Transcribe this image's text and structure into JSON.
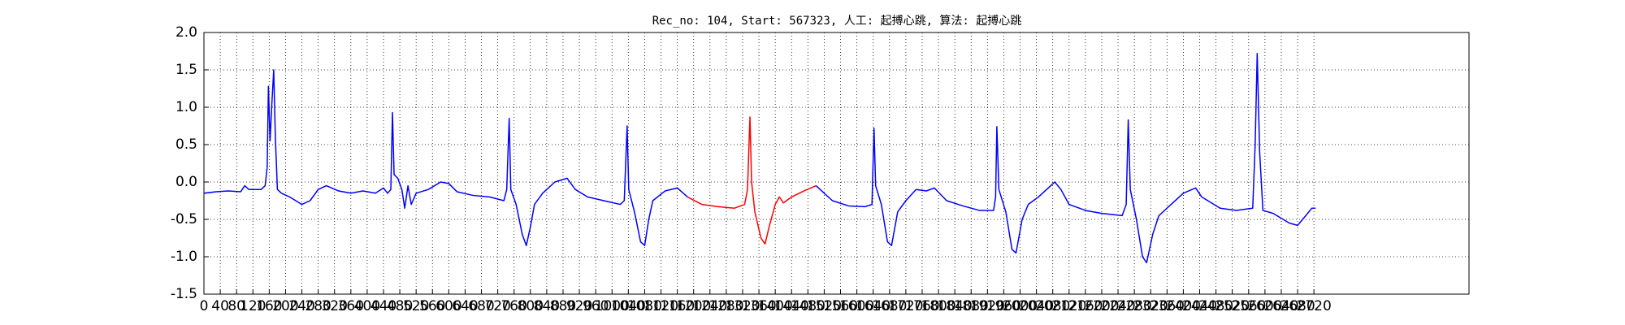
{
  "chart_data": {
    "type": "line",
    "title": "Rec_no: 104, Start: 567323, 人工: 起搏心跳, 算法: 起搏心跳",
    "xlim": [
      0,
      3100
    ],
    "ylim": [
      -1.5,
      2.0
    ],
    "yticks": [
      {
        "value": -1.5,
        "label": "-1.5"
      },
      {
        "value": -1.0,
        "label": "-1.0"
      },
      -0.5,
      {
        "value": 0.0,
        "label": "0.0"
      },
      0.5,
      {
        "value": 1.0,
        "label": "1.0"
      },
      1.5,
      {
        "value": 2.0,
        "label": "2.0"
      }
    ],
    "xticks": [
      0,
      40,
      80,
      120,
      160,
      200,
      240,
      280,
      320,
      360,
      400,
      440,
      480,
      520,
      560,
      600,
      640,
      680,
      720,
      760,
      800,
      840,
      880,
      920,
      960,
      1000,
      1040,
      1080,
      1120,
      1160,
      1200,
      1240,
      1280,
      1320,
      1360,
      1400,
      1440,
      1480,
      1520,
      1560,
      1600,
      1640,
      1680,
      1720,
      1760,
      1800,
      1840,
      1880,
      1920,
      1960,
      2000,
      2040,
      2080,
      2120,
      2160,
      2200,
      2240,
      2280,
      2320,
      2360,
      2400,
      2440,
      2480,
      2520,
      2560,
      2600,
      2640,
      2680,
      2720
    ],
    "grid": true,
    "series": [
      {
        "color": "#0000ff",
        "x": [
          0,
          30,
          60,
          90,
          100,
          110,
          140,
          150,
          155,
          158,
          162,
          166,
          171,
          175,
          180,
          190,
          210,
          240,
          260,
          280,
          300,
          330,
          360,
          390,
          420,
          440,
          450,
          458,
          462,
          466,
          475,
          485,
          492,
          500,
          508,
          520,
          550,
          580,
          600,
          620,
          660,
          700,
          735,
          742,
          748,
          752,
          765,
          780,
          790,
          800,
          810,
          830,
          860,
          890,
          910,
          940,
          980,
          1020,
          1030,
          1037,
          1041,
          1055,
          1070,
          1080,
          1090,
          1100,
          1130,
          1160,
          1185
        ],
        "values": [
          -0.15,
          -0.13,
          -0.12,
          -0.13,
          -0.05,
          -0.1,
          -0.1,
          -0.05,
          0.2,
          1.28,
          0.55,
          1.0,
          1.5,
          0.6,
          -0.1,
          -0.15,
          -0.2,
          -0.3,
          -0.25,
          -0.1,
          -0.05,
          -0.12,
          -0.15,
          -0.12,
          -0.15,
          -0.08,
          -0.15,
          -0.1,
          0.93,
          0.1,
          0.05,
          -0.1,
          -0.35,
          -0.05,
          -0.3,
          -0.15,
          -0.1,
          0.0,
          -0.02,
          -0.13,
          -0.18,
          -0.2,
          -0.25,
          -0.1,
          0.85,
          -0.1,
          -0.3,
          -0.7,
          -0.85,
          -0.6,
          -0.3,
          -0.15,
          0.0,
          0.05,
          -0.1,
          -0.2,
          -0.25,
          -0.3,
          -0.25,
          0.75,
          -0.1,
          -0.4,
          -0.8,
          -0.85,
          -0.5,
          -0.25,
          -0.12,
          -0.08,
          -0.2
        ]
      },
      {
        "color": "#ff0000",
        "x": [
          1185,
          1220,
          1260,
          1300,
          1325,
          1332,
          1338,
          1342,
          1350,
          1365,
          1375,
          1385,
          1400,
          1410,
          1420,
          1440,
          1470,
          1500
        ],
        "values": [
          -0.2,
          -0.3,
          -0.33,
          -0.35,
          -0.3,
          -0.1,
          0.87,
          0.0,
          -0.4,
          -0.75,
          -0.83,
          -0.6,
          -0.3,
          -0.2,
          -0.28,
          -0.2,
          -0.12,
          -0.05
        ]
      },
      {
        "color": "#0000ff",
        "x": [
          1500,
          1510,
          1540,
          1580,
          1620,
          1637,
          1642,
          1646,
          1660,
          1675,
          1685,
          1700,
          1720,
          1745,
          1770,
          1790,
          1820,
          1860,
          1900,
          1935,
          1940,
          1943,
          1948,
          1965,
          1980,
          1990,
          2005,
          2020,
          2045,
          2075,
          2085,
          2100,
          2120,
          2160,
          2200,
          2250,
          2260,
          2265,
          2270,
          2285,
          2300,
          2310,
          2325,
          2340,
          2370,
          2400,
          2430,
          2445,
          2460,
          2490,
          2530,
          2570,
          2576,
          2581,
          2587,
          2595,
          2620,
          2660,
          2680,
          2700,
          2715,
          2724
        ],
        "values": [
          -0.05,
          -0.1,
          -0.25,
          -0.32,
          -0.33,
          -0.3,
          0.72,
          -0.05,
          -0.3,
          -0.8,
          -0.85,
          -0.4,
          -0.25,
          -0.1,
          -0.12,
          -0.08,
          -0.25,
          -0.32,
          -0.38,
          -0.38,
          -0.2,
          0.74,
          -0.1,
          -0.4,
          -0.9,
          -0.95,
          -0.5,
          -0.3,
          -0.2,
          -0.05,
          0.0,
          -0.1,
          -0.3,
          -0.38,
          -0.42,
          -0.45,
          -0.3,
          0.83,
          -0.1,
          -0.5,
          -1.0,
          -1.08,
          -0.7,
          -0.45,
          -0.3,
          -0.15,
          -0.08,
          -0.2,
          -0.25,
          -0.35,
          -0.38,
          -0.35,
          0.5,
          1.72,
          0.4,
          -0.38,
          -0.42,
          -0.55,
          -0.58,
          -0.45,
          -0.35,
          -0.35
        ]
      }
    ]
  }
}
